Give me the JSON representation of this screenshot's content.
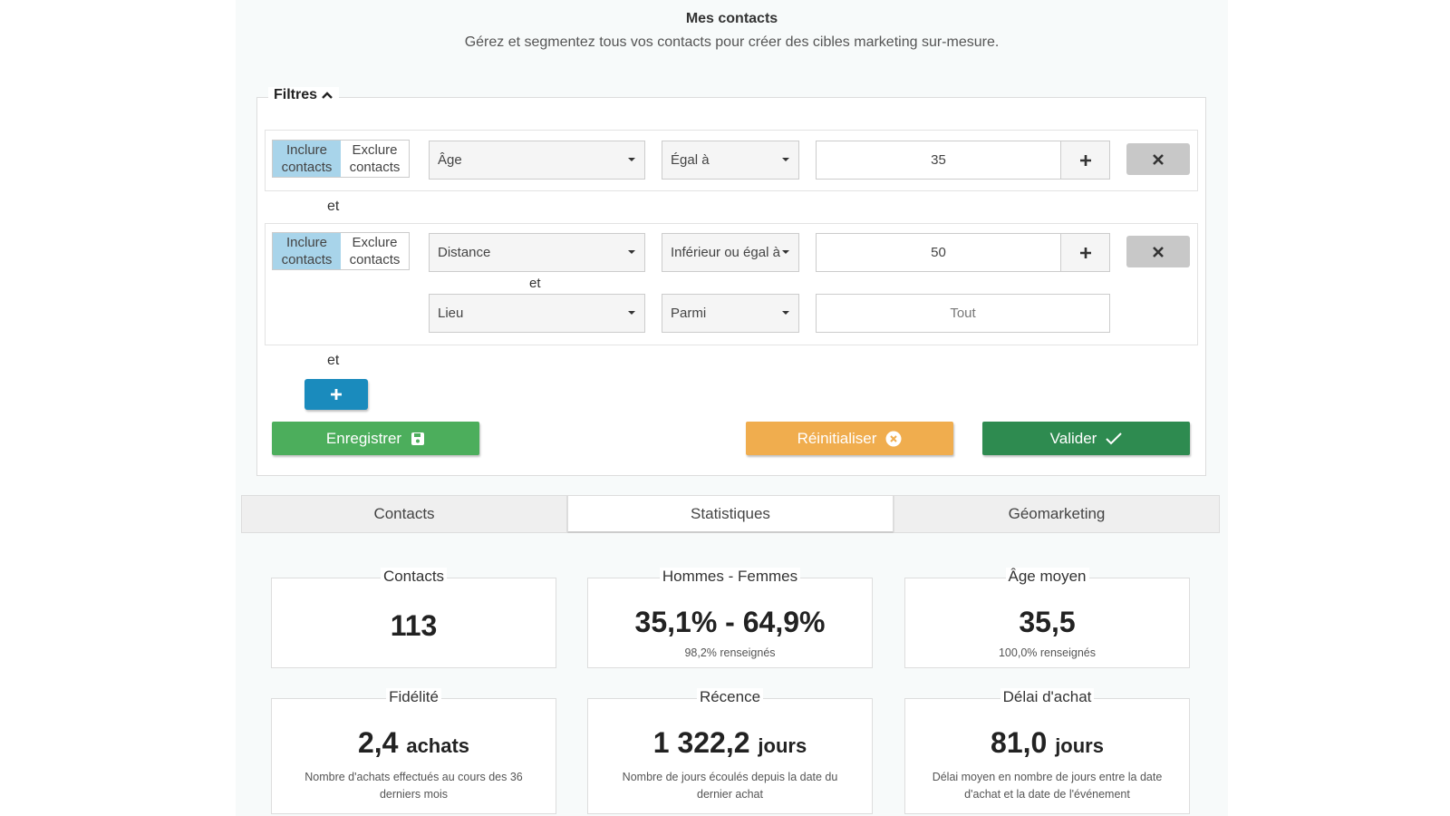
{
  "header": {
    "title": "Mes contacts",
    "subtitle": "Gérez et segmentez tous vos contacts pour créer des cibles marketing sur-mesure."
  },
  "filters": {
    "legend": "Filtres",
    "groups": [
      {
        "toggle": [
          "Inclure contacts",
          "Exclure contacts"
        ],
        "selected": 0,
        "rows": [
          {
            "field": "Âge",
            "operator": "Égal à",
            "value": "35"
          }
        ],
        "after": "et"
      },
      {
        "toggle": [
          "Inclure contacts",
          "Exclure contacts"
        ],
        "selected": 0,
        "rows": [
          {
            "field": "Distance",
            "operator": "Inférieur ou égal à",
            "value": "50"
          },
          {
            "field": "Lieu",
            "operator": "Parmi",
            "placeholder": "Tout"
          }
        ],
        "rows_joiner": "et",
        "after": "et"
      }
    ],
    "buttons": {
      "save": "Enregistrer",
      "reset": "Réinitialiser",
      "submit": "Valider"
    }
  },
  "tabs": {
    "items": [
      "Contacts",
      "Statistiques",
      "Géomarketing"
    ],
    "active": 1
  },
  "stats": [
    {
      "title": "Contacts",
      "value": "113"
    },
    {
      "title": "Hommes - Femmes",
      "value": "35,1% - 64,9%",
      "note": "98,2% renseignés"
    },
    {
      "title": "Âge moyen",
      "value": "35,5",
      "note": "100,0% renseignés"
    },
    {
      "title": "Fidélité",
      "value": "2,4",
      "unit": "achats",
      "note": "Nombre d'achats effectués au cours des 36 derniers mois"
    },
    {
      "title": "Récence",
      "value": "1 322,2",
      "unit": "jours",
      "note": "Nombre de jours écoulés depuis la date du dernier achat"
    },
    {
      "title": "Délai d'achat",
      "value": "81,0",
      "unit": "jours",
      "note": "Délai moyen en nombre de jours entre la date d'achat et la date de l'événement"
    }
  ]
}
